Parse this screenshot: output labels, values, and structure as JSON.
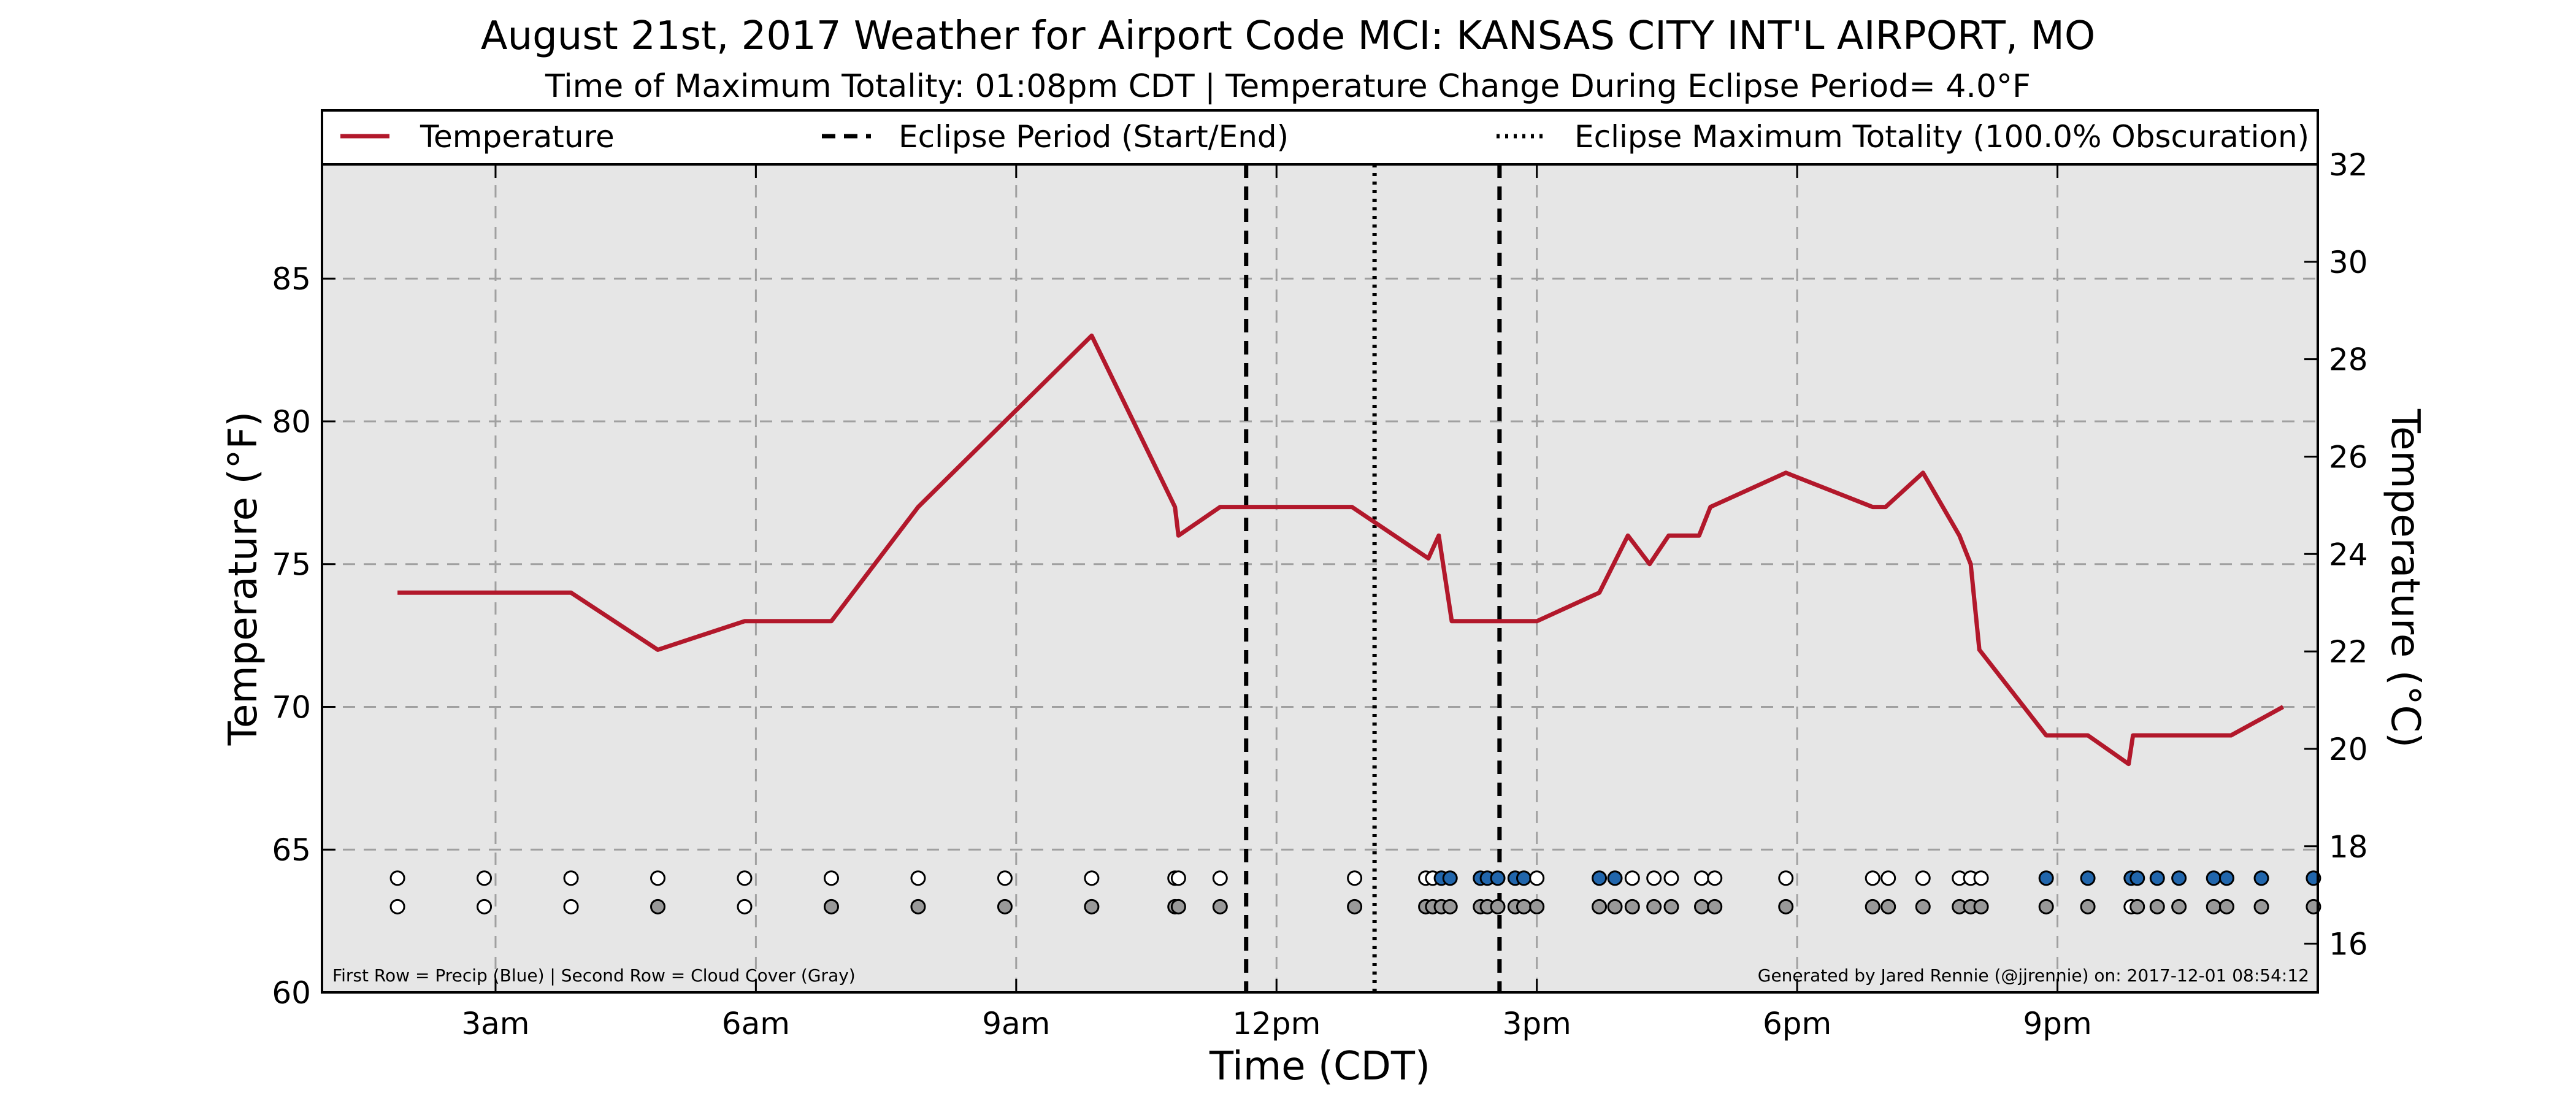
{
  "chart_data": {
    "type": "line",
    "title": "August 21st, 2017 Weather for Airport Code MCI: KANSAS CITY INT'L AIRPORT, MO",
    "subtitle": "Time of Maximum Totality: 01:08pm CDT | Temperature Change During Eclipse Period= 4.0°F",
    "xlabel": "Time (CDT)",
    "ylabel": "Temperature (°F)",
    "ylabel_right": "Temperature (°C)",
    "xlim": [
      1.0,
      24.0
    ],
    "ylim": [
      60,
      89
    ],
    "ylim_right": [
      15.0,
      32.0
    ],
    "x_ticks": [
      {
        "x": 3,
        "label": "3am"
      },
      {
        "x": 6,
        "label": "6am"
      },
      {
        "x": 9,
        "label": "9am"
      },
      {
        "x": 12,
        "label": "12pm"
      },
      {
        "x": 15,
        "label": "3pm"
      },
      {
        "x": 18,
        "label": "6pm"
      },
      {
        "x": 21,
        "label": "9pm"
      }
    ],
    "y_ticks": [
      60,
      65,
      70,
      75,
      80,
      85
    ],
    "y_ticks_right": [
      16,
      18,
      20,
      22,
      24,
      26,
      28,
      30,
      32
    ],
    "grid": true,
    "plot_background": "#e6e6e6",
    "legend": {
      "placement": "top",
      "items": [
        {
          "label": "Temperature",
          "style": "solid",
          "color": "#b2182b"
        },
        {
          "label": "Eclipse Period (Start/End)",
          "style": "dashed",
          "color": "#000000"
        },
        {
          "label": "Eclipse Maximum Totality (100.0% Obscuration)",
          "style": "dotted",
          "color": "#000000"
        }
      ]
    },
    "series": [
      {
        "name": "Temperature",
        "color": "#b2182b",
        "points": [
          [
            1.87,
            74
          ],
          [
            2.87,
            74
          ],
          [
            3.87,
            74
          ],
          [
            4.87,
            72
          ],
          [
            5.87,
            73
          ],
          [
            6.87,
            73
          ],
          [
            7.87,
            77
          ],
          [
            8.87,
            80
          ],
          [
            9.87,
            83
          ],
          [
            10.83,
            77
          ],
          [
            10.87,
            76
          ],
          [
            11.35,
            77
          ],
          [
            11.87,
            77
          ],
          [
            12.87,
            77
          ],
          [
            13.75,
            75.2
          ],
          [
            13.87,
            76
          ],
          [
            14.02,
            73
          ],
          [
            14.5,
            73
          ],
          [
            15.0,
            73
          ],
          [
            15.72,
            74
          ],
          [
            16.05,
            76
          ],
          [
            16.3,
            75
          ],
          [
            16.52,
            76
          ],
          [
            16.87,
            76
          ],
          [
            17.0,
            77
          ],
          [
            17.87,
            78.2
          ],
          [
            18.87,
            77
          ],
          [
            19.02,
            77
          ],
          [
            19.45,
            78.2
          ],
          [
            19.87,
            76
          ],
          [
            20.0,
            75
          ],
          [
            20.1,
            72
          ],
          [
            20.87,
            69
          ],
          [
            21.35,
            69
          ],
          [
            21.82,
            68
          ],
          [
            21.87,
            69
          ],
          [
            22.87,
            69
          ],
          [
            23.0,
            69
          ],
          [
            23.6,
            70
          ]
        ]
      }
    ],
    "eclipse_start": 11.65,
    "eclipse_max": 13.13,
    "eclipse_end": 14.57,
    "obs_rows": {
      "precip_y": 64,
      "cloud_y": 63,
      "precip_color": "#2166ac",
      "cloud_color": "#999999",
      "empty_color": "#ffffff",
      "obs": [
        [
          1.87,
          0,
          0
        ],
        [
          2.87,
          0,
          0
        ],
        [
          3.87,
          0,
          0
        ],
        [
          4.87,
          0,
          1
        ],
        [
          5.87,
          0,
          0
        ],
        [
          6.87,
          0,
          1
        ],
        [
          7.87,
          0,
          1
        ],
        [
          8.87,
          0,
          1
        ],
        [
          9.87,
          0,
          1
        ],
        [
          10.83,
          0,
          1
        ],
        [
          10.87,
          0,
          1
        ],
        [
          11.35,
          0,
          1
        ],
        [
          12.9,
          0,
          1
        ],
        [
          13.72,
          0,
          1
        ],
        [
          13.8,
          0,
          1
        ],
        [
          13.9,
          1,
          1
        ],
        [
          14.0,
          1,
          1
        ],
        [
          14.35,
          1,
          1
        ],
        [
          14.43,
          1,
          1
        ],
        [
          14.55,
          1,
          1
        ],
        [
          14.75,
          1,
          1
        ],
        [
          14.85,
          1,
          1
        ],
        [
          15.0,
          0,
          1
        ],
        [
          15.72,
          1,
          1
        ],
        [
          15.9,
          1,
          1
        ],
        [
          16.1,
          0,
          1
        ],
        [
          16.35,
          0,
          1
        ],
        [
          16.55,
          0,
          1
        ],
        [
          16.9,
          0,
          1
        ],
        [
          17.05,
          0,
          1
        ],
        [
          17.87,
          0,
          1
        ],
        [
          18.87,
          0,
          1
        ],
        [
          19.05,
          0,
          1
        ],
        [
          19.45,
          0,
          1
        ],
        [
          19.87,
          0,
          1
        ],
        [
          20.0,
          0,
          1
        ],
        [
          20.12,
          0,
          1
        ],
        [
          20.87,
          1,
          1
        ],
        [
          21.35,
          1,
          1
        ],
        [
          21.85,
          1,
          0
        ],
        [
          21.92,
          1,
          1
        ],
        [
          22.15,
          1,
          1
        ],
        [
          22.4,
          1,
          1
        ],
        [
          22.8,
          1,
          1
        ],
        [
          22.95,
          1,
          1
        ],
        [
          23.35,
          1,
          1
        ],
        [
          23.95,
          1,
          1
        ]
      ]
    }
  },
  "footnote_left": "First Row = Precip (Blue) | Second Row = Cloud Cover (Gray)",
  "footnote_right": "Generated by Jared Rennie (@jjrennie) on: 2017-12-01 08:54:12"
}
